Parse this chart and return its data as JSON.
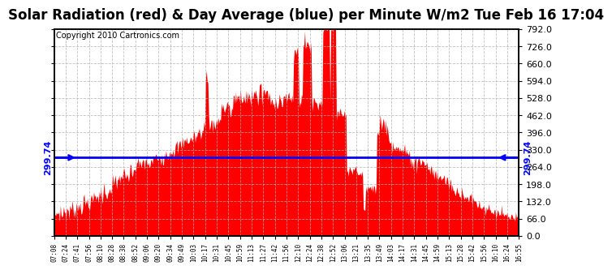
{
  "title": "Solar Radiation (red) & Day Average (blue) per Minute W/m2 Tue Feb 16 17:04",
  "copyright": "Copyright 2010 Cartronics.com",
  "day_average": 299.74,
  "y_min": 0,
  "y_max": 792,
  "y_ticks": [
    0.0,
    66.0,
    132.0,
    198.0,
    264.0,
    330.0,
    396.0,
    462.0,
    528.0,
    594.0,
    660.0,
    726.0,
    792.0
  ],
  "area_color": "#FF0000",
  "line_color": "#0000FF",
  "background_color": "#FFFFFF",
  "grid_color": "#B0B0B0",
  "title_fontsize": 12,
  "copyright_fontsize": 7,
  "x_tick_labels": [
    "07:08",
    "07:24",
    "07:41",
    "07:56",
    "08:10",
    "08:28",
    "08:38",
    "08:52",
    "09:06",
    "09:20",
    "09:34",
    "09:49",
    "10:03",
    "10:17",
    "10:31",
    "10:45",
    "10:59",
    "11:13",
    "11:27",
    "11:42",
    "11:56",
    "12:10",
    "12:24",
    "12:38",
    "12:52",
    "13:06",
    "13:21",
    "13:35",
    "13:49",
    "14:03",
    "14:17",
    "14:31",
    "14:45",
    "14:59",
    "15:13",
    "15:28",
    "15:42",
    "15:56",
    "16:10",
    "16:24",
    "16:55"
  ]
}
